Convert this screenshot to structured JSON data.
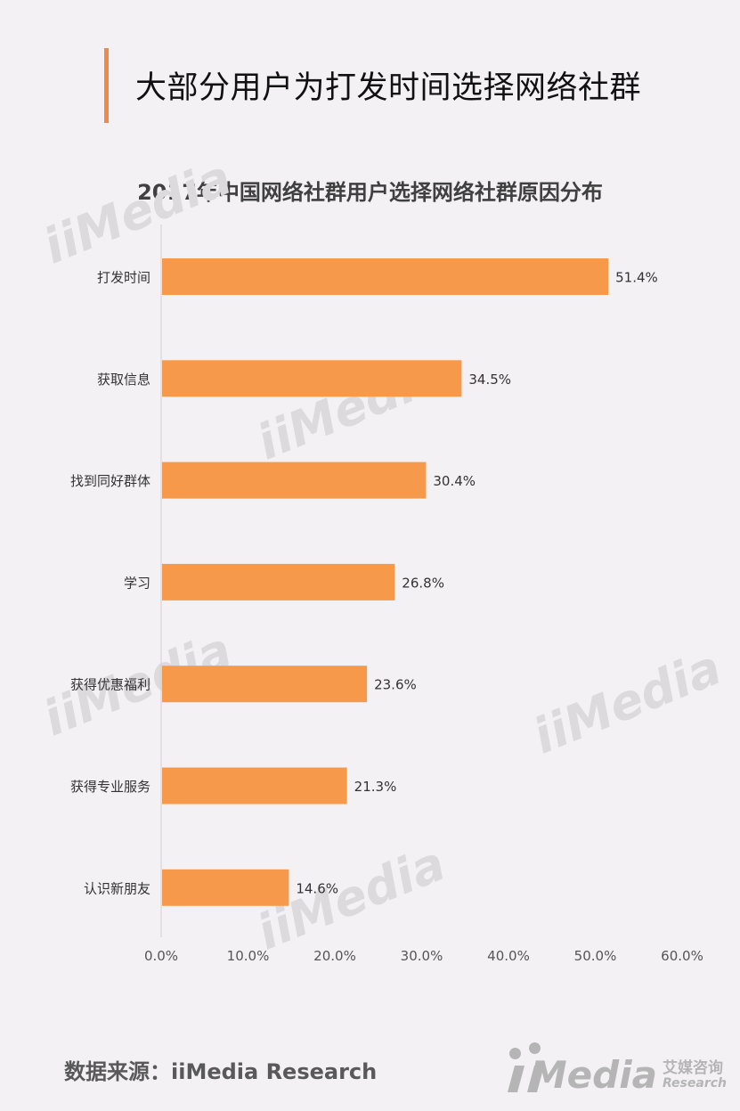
{
  "page_title": "大部分用户为打发时间选择网络社群",
  "source_text": "数据来源：iiMedia Research",
  "logo": {
    "text": "Media",
    "cn": "艾媒咨询",
    "en": "Research"
  },
  "watermark": {
    "text": "iiMedia",
    "cn": "艾媒咨询",
    "en": "Research"
  },
  "colors": {
    "bar": "#f7994b",
    "accent": "#f08a4b",
    "axis": "#d0d0d0"
  },
  "chart_data": {
    "type": "bar",
    "orientation": "horizontal",
    "title": "2017年中国网络社群用户选择网络社群原因分布",
    "categories": [
      "打发时间",
      "获取信息",
      "找到同好群体",
      "学习",
      "获得优惠福利",
      "获得专业服务",
      "认识新朋友"
    ],
    "values": [
      51.4,
      34.5,
      30.4,
      26.8,
      23.6,
      21.3,
      14.6
    ],
    "value_labels": [
      "51.4%",
      "34.5%",
      "30.4%",
      "26.8%",
      "23.6%",
      "21.3%",
      "14.6%"
    ],
    "xticks": [
      "0.0%",
      "10.0%",
      "20.0%",
      "30.0%",
      "40.0%",
      "50.0%",
      "60.0%"
    ],
    "xlim": [
      0,
      60
    ],
    "grid": false,
    "legend": "none"
  }
}
